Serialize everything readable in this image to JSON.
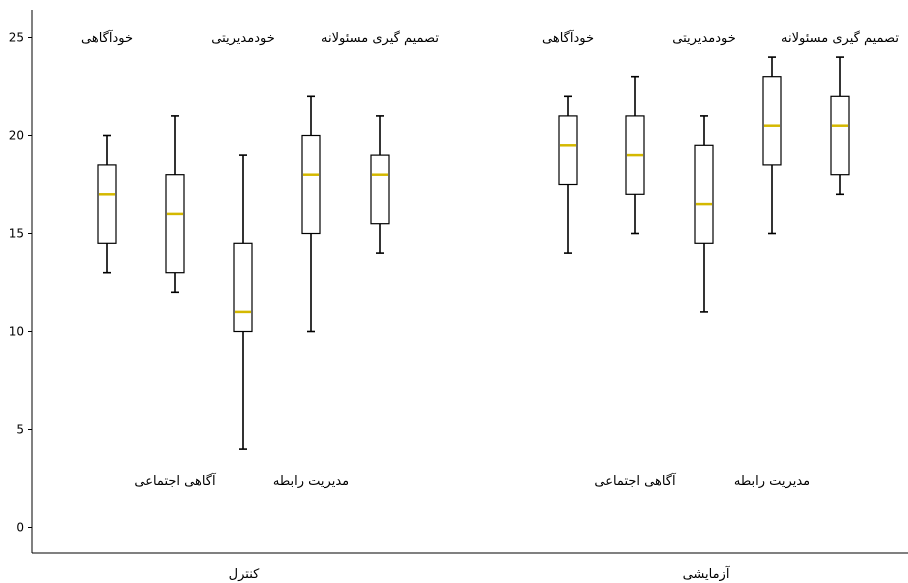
{
  "chart_data": {
    "type": "boxplot",
    "title": "",
    "xlabel": "",
    "ylabel": "",
    "ylim": [
      0,
      26
    ],
    "yticks": [
      0,
      5,
      10,
      15,
      20,
      25
    ],
    "grid": false,
    "colors": {
      "box": "#000000",
      "median": "#d4b800"
    },
    "groups": [
      {
        "name": "کنترل",
        "boxes": [
          {
            "label": "خودآگاهی",
            "label_pos": "top",
            "min": 13,
            "q1": 14.5,
            "median": 17,
            "q3": 18.5,
            "max": 20
          },
          {
            "label": "آگاهی اجتماعی",
            "label_pos": "bottom",
            "min": 12,
            "q1": 13,
            "median": 16,
            "q3": 18,
            "max": 21
          },
          {
            "label": "خودمدیریتی",
            "label_pos": "top",
            "min": 4,
            "q1": 10,
            "median": 11,
            "q3": 14.5,
            "max": 19
          },
          {
            "label": "مدیریت رابطه",
            "label_pos": "bottom",
            "min": 10,
            "q1": 15,
            "median": 18,
            "q3": 20,
            "max": 22
          },
          {
            "label": "تصمیم گیری مسئولانه",
            "label_pos": "top",
            "min": 14,
            "q1": 15.5,
            "median": 18,
            "q3": 19,
            "max": 21
          }
        ]
      },
      {
        "name": "آزمایشی",
        "boxes": [
          {
            "label": "خودآگاهی",
            "label_pos": "top",
            "min": 14,
            "q1": 17.5,
            "median": 19.5,
            "q3": 21,
            "max": 22
          },
          {
            "label": "آگاهی اجتماعی",
            "label_pos": "bottom",
            "min": 15,
            "q1": 17,
            "median": 19,
            "q3": 21,
            "max": 23
          },
          {
            "label": "خودمدیریتی",
            "label_pos": "top",
            "min": 11,
            "q1": 14.5,
            "median": 16.5,
            "q3": 19.5,
            "max": 21
          },
          {
            "label": "مدیریت رابطه",
            "label_pos": "bottom",
            "min": 15,
            "q1": 18.5,
            "median": 20.5,
            "q3": 23,
            "max": 24
          },
          {
            "label": "تصمیم گیری مسئولانه",
            "label_pos": "top",
            "min": 17,
            "q1": 18,
            "median": 20.5,
            "q3": 22,
            "max": 24
          }
        ]
      }
    ]
  }
}
